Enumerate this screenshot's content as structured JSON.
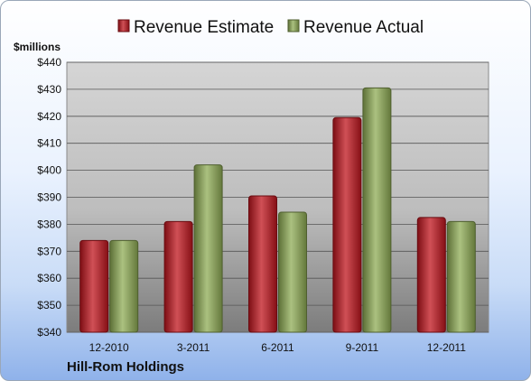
{
  "company": "Hill-Rom Holdings",
  "chart_data": {
    "type": "bar",
    "categories": [
      "12-2010",
      "3-2011",
      "6-2011",
      "9-2011",
      "12-2011"
    ],
    "series": [
      {
        "name": "Revenue Estimate",
        "color": "#c0161e",
        "values": [
          374,
          381,
          390.5,
          419.5,
          382.5
        ]
      },
      {
        "name": "Revenue Actual",
        "color": "#8fac55",
        "values": [
          374,
          402,
          384.5,
          430.5,
          381
        ]
      }
    ],
    "ylabel": "$millions",
    "ylim": [
      340,
      440
    ],
    "yticks": [
      340,
      350,
      360,
      370,
      380,
      390,
      400,
      410,
      420,
      430,
      440
    ],
    "ytick_labels": [
      "$340",
      "$350",
      "$360",
      "$370",
      "$380",
      "$390",
      "$400",
      "$410",
      "$420",
      "$430",
      "$440"
    ],
    "grid": true,
    "legend_position": "top"
  }
}
